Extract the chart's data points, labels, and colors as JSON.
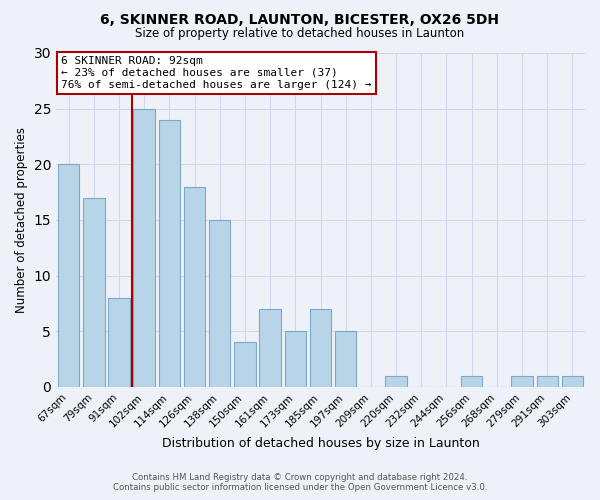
{
  "title": "6, SKINNER ROAD, LAUNTON, BICESTER, OX26 5DH",
  "subtitle": "Size of property relative to detached houses in Launton",
  "xlabel": "Distribution of detached houses by size in Launton",
  "ylabel": "Number of detached properties",
  "categories": [
    "67sqm",
    "79sqm",
    "91sqm",
    "102sqm",
    "114sqm",
    "126sqm",
    "138sqm",
    "150sqm",
    "161sqm",
    "173sqm",
    "185sqm",
    "197sqm",
    "209sqm",
    "220sqm",
    "232sqm",
    "244sqm",
    "256sqm",
    "268sqm",
    "279sqm",
    "291sqm",
    "303sqm"
  ],
  "values": [
    20,
    17,
    8,
    25,
    24,
    18,
    15,
    4,
    7,
    5,
    7,
    5,
    0,
    1,
    0,
    0,
    1,
    0,
    1,
    1,
    1
  ],
  "bar_color": "#b8d4e8",
  "bar_edge_color": "#7aaac8",
  "highlight_line_color": "#aa0000",
  "ylim": [
    0,
    30
  ],
  "yticks": [
    0,
    5,
    10,
    15,
    20,
    25,
    30
  ],
  "annotation_title": "6 SKINNER ROAD: 92sqm",
  "annotation_line1": "← 23% of detached houses are smaller (37)",
  "annotation_line2": "76% of semi-detached houses are larger (124) →",
  "annotation_box_color": "#ffffff",
  "annotation_box_edge_color": "#aa0000",
  "footer_line1": "Contains HM Land Registry data © Crown copyright and database right 2024.",
  "footer_line2": "Contains public sector information licensed under the Open Government Licence v3.0.",
  "background_color": "#eef2f8",
  "grid_color": "#d0d8e8"
}
